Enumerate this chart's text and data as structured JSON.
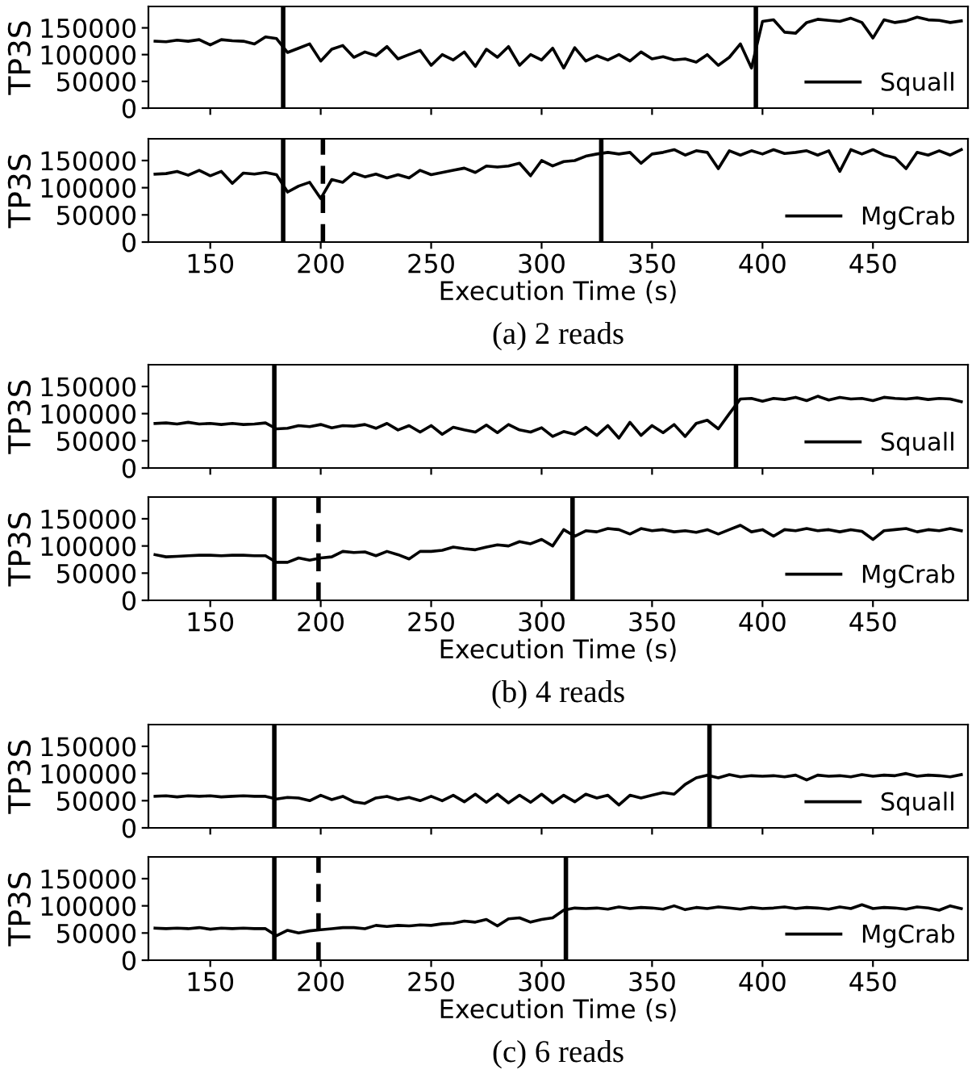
{
  "chart_data": [
    {
      "type": "line",
      "ylabel": "TP3S",
      "tick_labels": "y",
      "legend": "bottom right",
      "xlim": [
        122,
        493
      ],
      "xticks": [
        150,
        200,
        250,
        300,
        350,
        400,
        450
      ],
      "ylim": [
        0,
        190000
      ],
      "yticks": [
        0,
        50000,
        100000,
        150000
      ],
      "x": [
        125,
        130,
        135,
        140,
        145,
        150,
        155,
        160,
        165,
        170,
        175,
        180,
        185,
        190,
        195,
        200,
        205,
        210,
        215,
        220,
        225,
        230,
        235,
        240,
        245,
        250,
        255,
        260,
        265,
        270,
        275,
        280,
        285,
        290,
        295,
        300,
        305,
        310,
        315,
        320,
        325,
        330,
        335,
        340,
        345,
        350,
        355,
        360,
        365,
        370,
        375,
        380,
        385,
        390,
        395,
        400,
        405,
        410,
        415,
        420,
        425,
        430,
        435,
        440,
        445,
        450,
        455,
        460,
        465,
        470,
        475,
        480,
        485,
        490
      ],
      "series": [
        {
          "name": "Squall",
          "color": "#000000",
          "values": [
            125000,
            124000,
            127000,
            125000,
            128000,
            118000,
            128000,
            126000,
            125000,
            120000,
            133000,
            130000,
            104000,
            112000,
            120000,
            88000,
            110000,
            117000,
            95000,
            105000,
            98000,
            115000,
            92000,
            100000,
            108000,
            80000,
            100000,
            90000,
            105000,
            78000,
            110000,
            95000,
            115000,
            80000,
            100000,
            90000,
            112000,
            75000,
            113000,
            88000,
            98000,
            90000,
            100000,
            88000,
            105000,
            92000,
            96000,
            90000,
            92000,
            86000,
            100000,
            80000,
            95000,
            120000,
            75000,
            162000,
            165000,
            142000,
            140000,
            160000,
            166000,
            164000,
            162000,
            168000,
            160000,
            131000,
            165000,
            160000,
            163000,
            170000,
            165000,
            164000,
            160000,
            163000
          ]
        }
      ],
      "ref_lines": [
        {
          "axis": "x",
          "value": 183,
          "color": "#000000",
          "line_style": "solid"
        },
        {
          "axis": "x",
          "value": 397,
          "color": "#000000",
          "line_style": "solid"
        }
      ]
    },
    {
      "type": "line",
      "ylabel": "TP3S",
      "xlabel": "Execution Time (s)",
      "legend": "bottom right",
      "xlim": [
        122,
        493
      ],
      "xticks": [
        150,
        200,
        250,
        300,
        350,
        400,
        450
      ],
      "ylim": [
        0,
        190000
      ],
      "yticks": [
        0,
        50000,
        100000,
        150000
      ],
      "x": [
        125,
        130,
        135,
        140,
        145,
        150,
        155,
        160,
        165,
        170,
        175,
        180,
        185,
        190,
        195,
        200,
        205,
        210,
        215,
        220,
        225,
        230,
        235,
        240,
        245,
        250,
        255,
        260,
        265,
        270,
        275,
        280,
        285,
        290,
        295,
        300,
        305,
        310,
        315,
        320,
        325,
        330,
        335,
        340,
        345,
        350,
        355,
        360,
        365,
        370,
        375,
        380,
        385,
        390,
        395,
        400,
        405,
        410,
        415,
        420,
        425,
        430,
        435,
        440,
        445,
        450,
        455,
        460,
        465,
        470,
        475,
        480,
        485,
        490
      ],
      "series": [
        {
          "name": "MgCrab",
          "color": "#000000",
          "values": [
            125000,
            126000,
            130000,
            123000,
            132000,
            122000,
            130000,
            108000,
            127000,
            125000,
            128000,
            124000,
            92000,
            103000,
            110000,
            80000,
            115000,
            110000,
            127000,
            120000,
            125000,
            118000,
            124000,
            118000,
            132000,
            124000,
            128000,
            132000,
            136000,
            128000,
            140000,
            138000,
            140000,
            145000,
            122000,
            150000,
            140000,
            148000,
            150000,
            158000,
            162000,
            165000,
            162000,
            165000,
            145000,
            162000,
            165000,
            170000,
            160000,
            168000,
            165000,
            135000,
            168000,
            160000,
            168000,
            162000,
            170000,
            163000,
            165000,
            168000,
            160000,
            168000,
            130000,
            170000,
            162000,
            170000,
            160000,
            155000,
            135000,
            165000,
            160000,
            168000,
            160000,
            170000
          ]
        }
      ],
      "ref_lines": [
        {
          "axis": "x",
          "value": 183,
          "color": "#000000",
          "line_style": "solid"
        },
        {
          "axis": "x",
          "value": 201,
          "color": "#000000",
          "line_style": "dashed"
        },
        {
          "axis": "x",
          "value": 327,
          "color": "#000000",
          "line_style": "solid"
        }
      ],
      "annotations": [
        "(a) 2 reads"
      ]
    },
    {
      "type": "line",
      "ylabel": "TP3S",
      "tick_labels": "y",
      "legend": "bottom right",
      "xlim": [
        122,
        493
      ],
      "xticks": [
        150,
        200,
        250,
        300,
        350,
        400,
        450
      ],
      "ylim": [
        0,
        190000
      ],
      "yticks": [
        0,
        50000,
        100000,
        150000
      ],
      "x": [
        125,
        130,
        135,
        140,
        145,
        150,
        155,
        160,
        165,
        170,
        175,
        180,
        185,
        190,
        195,
        200,
        205,
        210,
        215,
        220,
        225,
        230,
        235,
        240,
        245,
        250,
        255,
        260,
        265,
        270,
        275,
        280,
        285,
        290,
        295,
        300,
        305,
        310,
        315,
        320,
        325,
        330,
        335,
        340,
        345,
        350,
        355,
        360,
        365,
        370,
        375,
        380,
        385,
        390,
        395,
        400,
        405,
        410,
        415,
        420,
        425,
        430,
        435,
        440,
        445,
        450,
        455,
        460,
        465,
        470,
        475,
        480,
        485,
        490
      ],
      "series": [
        {
          "name": "Squall",
          "color": "#000000",
          "values": [
            82000,
            83000,
            81000,
            84000,
            81000,
            82000,
            80000,
            82000,
            80000,
            81000,
            83000,
            72000,
            73000,
            78000,
            76000,
            80000,
            74000,
            78000,
            77000,
            80000,
            73000,
            82000,
            70000,
            78000,
            66000,
            78000,
            62000,
            75000,
            70000,
            66000,
            79000,
            65000,
            80000,
            70000,
            66000,
            74000,
            58000,
            67000,
            62000,
            75000,
            60000,
            78000,
            55000,
            84000,
            60000,
            78000,
            65000,
            80000,
            58000,
            82000,
            88000,
            72000,
            100000,
            127000,
            128000,
            123000,
            128000,
            126000,
            130000,
            124000,
            132000,
            125000,
            130000,
            127000,
            128000,
            124000,
            130000,
            128000,
            127000,
            129000,
            126000,
            128000,
            127000,
            122000
          ]
        }
      ],
      "ref_lines": [
        {
          "axis": "x",
          "value": 179,
          "color": "#000000",
          "line_style": "solid"
        },
        {
          "axis": "x",
          "value": 388,
          "color": "#000000",
          "line_style": "solid"
        }
      ]
    },
    {
      "type": "line",
      "ylabel": "TP3S",
      "xlabel": "Execution Time (s)",
      "legend": "bottom right",
      "xlim": [
        122,
        493
      ],
      "xticks": [
        150,
        200,
        250,
        300,
        350,
        400,
        450
      ],
      "ylim": [
        0,
        190000
      ],
      "yticks": [
        0,
        50000,
        100000,
        150000
      ],
      "x": [
        125,
        130,
        135,
        140,
        145,
        150,
        155,
        160,
        165,
        170,
        175,
        180,
        185,
        190,
        195,
        200,
        205,
        210,
        215,
        220,
        225,
        230,
        235,
        240,
        245,
        250,
        255,
        260,
        265,
        270,
        275,
        280,
        285,
        290,
        295,
        300,
        305,
        310,
        315,
        320,
        325,
        330,
        335,
        340,
        345,
        350,
        355,
        360,
        365,
        370,
        375,
        380,
        385,
        390,
        395,
        400,
        405,
        410,
        415,
        420,
        425,
        430,
        435,
        440,
        445,
        450,
        455,
        460,
        465,
        470,
        475,
        480,
        485,
        490
      ],
      "series": [
        {
          "name": "MgCrab",
          "color": "#000000",
          "values": [
            84000,
            80000,
            81000,
            82000,
            83000,
            83000,
            82000,
            83000,
            83000,
            82000,
            82000,
            70000,
            70000,
            78000,
            74000,
            78000,
            80000,
            90000,
            88000,
            89000,
            82000,
            90000,
            84000,
            76000,
            90000,
            90000,
            92000,
            98000,
            95000,
            93000,
            98000,
            102000,
            100000,
            108000,
            104000,
            112000,
            100000,
            130000,
            118000,
            128000,
            126000,
            132000,
            130000,
            122000,
            132000,
            128000,
            130000,
            126000,
            128000,
            125000,
            130000,
            122000,
            130000,
            138000,
            126000,
            130000,
            118000,
            130000,
            128000,
            132000,
            128000,
            130000,
            126000,
            130000,
            127000,
            112000,
            128000,
            130000,
            132000,
            126000,
            130000,
            128000,
            132000,
            128000
          ]
        }
      ],
      "ref_lines": [
        {
          "axis": "x",
          "value": 179,
          "color": "#000000",
          "line_style": "solid"
        },
        {
          "axis": "x",
          "value": 199,
          "color": "#000000",
          "line_style": "dashed"
        },
        {
          "axis": "x",
          "value": 314,
          "color": "#000000",
          "line_style": "solid"
        }
      ],
      "annotations": [
        "(b) 4 reads"
      ]
    },
    {
      "type": "line",
      "ylabel": "TP3S",
      "tick_labels": "y",
      "legend": "bottom right",
      "xlim": [
        122,
        493
      ],
      "xticks": [
        150,
        200,
        250,
        300,
        350,
        400,
        450
      ],
      "ylim": [
        0,
        190000
      ],
      "yticks": [
        0,
        50000,
        100000,
        150000
      ],
      "x": [
        125,
        130,
        135,
        140,
        145,
        150,
        155,
        160,
        165,
        170,
        175,
        180,
        185,
        190,
        195,
        200,
        205,
        210,
        215,
        220,
        225,
        230,
        235,
        240,
        245,
        250,
        255,
        260,
        265,
        270,
        275,
        280,
        285,
        290,
        295,
        300,
        305,
        310,
        315,
        320,
        325,
        330,
        335,
        340,
        345,
        350,
        355,
        360,
        365,
        370,
        375,
        380,
        385,
        390,
        395,
        400,
        405,
        410,
        415,
        420,
        425,
        430,
        435,
        440,
        445,
        450,
        455,
        460,
        465,
        470,
        475,
        480,
        485,
        490
      ],
      "series": [
        {
          "name": "Squall",
          "color": "#000000",
          "values": [
            58000,
            59000,
            57000,
            59000,
            58000,
            59000,
            57000,
            58000,
            59000,
            58000,
            58000,
            53000,
            56000,
            55000,
            50000,
            60000,
            52000,
            58000,
            48000,
            45000,
            55000,
            58000,
            52000,
            56000,
            50000,
            58000,
            50000,
            60000,
            48000,
            62000,
            47000,
            62000,
            46000,
            60000,
            47000,
            62000,
            46000,
            60000,
            48000,
            62000,
            55000,
            60000,
            42000,
            60000,
            55000,
            60000,
            65000,
            62000,
            80000,
            92000,
            97000,
            92000,
            98000,
            94000,
            96000,
            95000,
            96000,
            94000,
            97000,
            88000,
            97000,
            95000,
            96000,
            94000,
            98000,
            95000,
            97000,
            96000,
            100000,
            95000,
            97000,
            96000,
            94000,
            98000
          ]
        }
      ],
      "ref_lines": [
        {
          "axis": "x",
          "value": 179,
          "color": "#000000",
          "line_style": "solid"
        },
        {
          "axis": "x",
          "value": 376,
          "color": "#000000",
          "line_style": "solid"
        }
      ]
    },
    {
      "type": "line",
      "ylabel": "TP3S",
      "xlabel": "Execution Time (s)",
      "legend": "bottom right",
      "xlim": [
        122,
        493
      ],
      "xticks": [
        150,
        200,
        250,
        300,
        350,
        400,
        450
      ],
      "ylim": [
        0,
        190000
      ],
      "yticks": [
        0,
        50000,
        100000,
        150000
      ],
      "x": [
        125,
        130,
        135,
        140,
        145,
        150,
        155,
        160,
        165,
        170,
        175,
        180,
        185,
        190,
        195,
        200,
        205,
        210,
        215,
        220,
        225,
        230,
        235,
        240,
        245,
        250,
        255,
        260,
        265,
        270,
        275,
        280,
        285,
        290,
        295,
        300,
        305,
        310,
        315,
        320,
        325,
        330,
        335,
        340,
        345,
        350,
        355,
        360,
        365,
        370,
        375,
        380,
        385,
        390,
        395,
        400,
        405,
        410,
        415,
        420,
        425,
        430,
        435,
        440,
        445,
        450,
        455,
        460,
        465,
        470,
        475,
        480,
        485,
        490
      ],
      "series": [
        {
          "name": "MgCrab",
          "color": "#000000",
          "values": [
            59000,
            58000,
            59000,
            58000,
            60000,
            57000,
            59000,
            58000,
            59000,
            58000,
            58000,
            45000,
            55000,
            50000,
            54000,
            56000,
            58000,
            60000,
            60000,
            58000,
            64000,
            62000,
            64000,
            63000,
            65000,
            64000,
            67000,
            68000,
            72000,
            70000,
            75000,
            63000,
            76000,
            78000,
            70000,
            75000,
            78000,
            92000,
            96000,
            95000,
            96000,
            94000,
            98000,
            95000,
            97000,
            96000,
            94000,
            100000,
            93000,
            97000,
            95000,
            98000,
            96000,
            94000,
            97000,
            95000,
            96000,
            98000,
            95000,
            97000,
            96000,
            94000,
            98000,
            95000,
            102000,
            95000,
            97000,
            96000,
            94000,
            98000,
            96000,
            92000,
            100000,
            95000
          ]
        }
      ],
      "ref_lines": [
        {
          "axis": "x",
          "value": 179,
          "color": "#000000",
          "line_style": "solid"
        },
        {
          "axis": "x",
          "value": 199,
          "color": "#000000",
          "line_style": "dashed"
        },
        {
          "axis": "x",
          "value": 311,
          "color": "#000000",
          "line_style": "solid"
        }
      ],
      "annotations": [
        "(c) 6 reads"
      ]
    }
  ]
}
